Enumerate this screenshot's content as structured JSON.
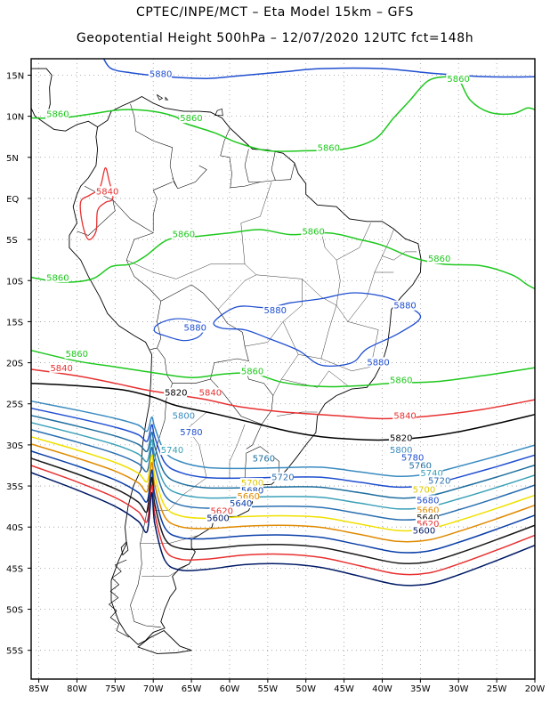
{
  "title_line1": "CPTEC/INPE/MCT –  Eta Model 15km – GFS",
  "title_line2": "Geopotential Height 500hPa – 12/07/2020 12UTC fct=148h",
  "lat_labels": [
    "15N",
    "10N",
    "5N",
    "EQ",
    "5S",
    "10S",
    "15S",
    "20S",
    "25S",
    "30S",
    "35S",
    "40S",
    "45S",
    "50S",
    "55S"
  ],
  "lon_labels": [
    "85W",
    "80W",
    "75W",
    "70W",
    "65W",
    "60W",
    "55W",
    "50W",
    "45W",
    "40W",
    "35W",
    "30W",
    "25W",
    "20W"
  ],
  "contour_colors": {
    "5600": "#001a66",
    "5620": "#e83030",
    "5640": "#1a1a1a",
    "5660": "#0a3fa8",
    "5680": "#e08a00",
    "5700": "#f0e000",
    "5720": "#2a6fb0",
    "5740": "#3aa0b8",
    "5760": "#1f6fa0",
    "5780": "#1f4fd0",
    "5800": "#3a8bc0",
    "5820": "#000000",
    "5840": "#e83030",
    "5860": "#1ec81e",
    "5880": "#1f4fd0"
  },
  "contour_labels": [
    {
      "text": "5880",
      "color": "#1f4fd0",
      "lon": -70.5,
      "lat": 14.8
    },
    {
      "text": "5860",
      "color": "#1ec81e",
      "lon": -31.5,
      "lat": 14.2
    },
    {
      "text": "5860",
      "color": "#1ec81e",
      "lon": -84.0,
      "lat": 9.9
    },
    {
      "text": "5860",
      "color": "#1ec81e",
      "lon": -66.5,
      "lat": 9.4
    },
    {
      "text": "5860",
      "color": "#1ec81e",
      "lon": -48.5,
      "lat": 5.8
    },
    {
      "text": "5840",
      "color": "#e83030",
      "lon": -77.5,
      "lat": 0.5
    },
    {
      "text": "5860",
      "color": "#1ec81e",
      "lon": -67.5,
      "lat": -4.7
    },
    {
      "text": "5860",
      "color": "#1ec81e",
      "lon": -50.5,
      "lat": -4.4
    },
    {
      "text": "5860",
      "color": "#1ec81e",
      "lon": -34.0,
      "lat": -7.7
    },
    {
      "text": "5860",
      "color": "#1ec81e",
      "lon": -84.0,
      "lat": -10.0
    },
    {
      "text": "5880",
      "color": "#1f4fd0",
      "lon": -55.5,
      "lat": -14.0
    },
    {
      "text": "5880",
      "color": "#1f4fd0",
      "lon": -38.5,
      "lat": -13.4
    },
    {
      "text": "5880",
      "color": "#1f4fd0",
      "lon": -66.0,
      "lat": -16.1
    },
    {
      "text": "5880",
      "color": "#1f4fd0",
      "lon": -42.0,
      "lat": -20.3
    },
    {
      "text": "5860",
      "color": "#1ec81e",
      "lon": -81.5,
      "lat": -19.3
    },
    {
      "text": "5840",
      "color": "#e83030",
      "lon": -83.5,
      "lat": -21.0
    },
    {
      "text": "5860",
      "color": "#1ec81e",
      "lon": -58.5,
      "lat": -21.4
    },
    {
      "text": "5860",
      "color": "#1ec81e",
      "lon": -39.0,
      "lat": -22.5
    },
    {
      "text": "5820",
      "color": "#000000",
      "lon": -68.5,
      "lat": -24.0
    },
    {
      "text": "5840",
      "color": "#e83030",
      "lon": -64.0,
      "lat": -24.0
    },
    {
      "text": "5800",
      "color": "#3a8bc0",
      "lon": -67.5,
      "lat": -26.8
    },
    {
      "text": "5840",
      "color": "#e83030",
      "lon": -38.5,
      "lat": -26.8
    },
    {
      "text": "5780",
      "color": "#1f4fd0",
      "lon": -66.5,
      "lat": -28.8
    },
    {
      "text": "5820",
      "color": "#000000",
      "lon": -39.0,
      "lat": -29.5
    },
    {
      "text": "5740",
      "color": "#3aa0b8",
      "lon": -69.0,
      "lat": -31.0
    },
    {
      "text": "5800",
      "color": "#3a8bc0",
      "lon": -39.0,
      "lat": -31.0
    },
    {
      "text": "5760",
      "color": "#1f6fa0",
      "lon": -57.0,
      "lat": -32.0
    },
    {
      "text": "5780",
      "color": "#1f4fd0",
      "lon": -37.5,
      "lat": -31.9
    },
    {
      "text": "5760",
      "color": "#1f6fa0",
      "lon": -36.5,
      "lat": -32.9
    },
    {
      "text": "5720",
      "color": "#2a6fb0",
      "lon": -54.5,
      "lat": -34.3
    },
    {
      "text": "5740",
      "color": "#3aa0b8",
      "lon": -35.0,
      "lat": -33.8
    },
    {
      "text": "5720",
      "color": "#2a6fb0",
      "lon": -34.0,
      "lat": -34.7
    },
    {
      "text": "5700",
      "color": "#e0c800",
      "lon": -58.5,
      "lat": -35.0
    },
    {
      "text": "5680",
      "color": "#0a3fa8",
      "lon": -58.5,
      "lat": -35.9
    },
    {
      "text": "5660",
      "color": "#e08a00",
      "lon": -59.0,
      "lat": -36.6
    },
    {
      "text": "5700",
      "color": "#e0c800",
      "lon": -36.0,
      "lat": -35.8
    },
    {
      "text": "5640",
      "color": "#0a3fa8",
      "lon": -60.0,
      "lat": -37.5
    },
    {
      "text": "5680",
      "color": "#1f4fd0",
      "lon": -35.5,
      "lat": -37.1
    },
    {
      "text": "5620",
      "color": "#e83030",
      "lon": -62.5,
      "lat": -38.4
    },
    {
      "text": "5660",
      "color": "#e08a00",
      "lon": -35.5,
      "lat": -38.3
    },
    {
      "text": "5600",
      "color": "#001a66",
      "lon": -63.0,
      "lat": -39.3
    },
    {
      "text": "5640",
      "color": "#1a1a1a",
      "lon": -35.5,
      "lat": -39.2
    },
    {
      "text": "5620",
      "color": "#e83030",
      "lon": -35.5,
      "lat": -40.0
    },
    {
      "text": "5600",
      "color": "#001a66",
      "lon": -36.0,
      "lat": -40.8
    }
  ]
}
